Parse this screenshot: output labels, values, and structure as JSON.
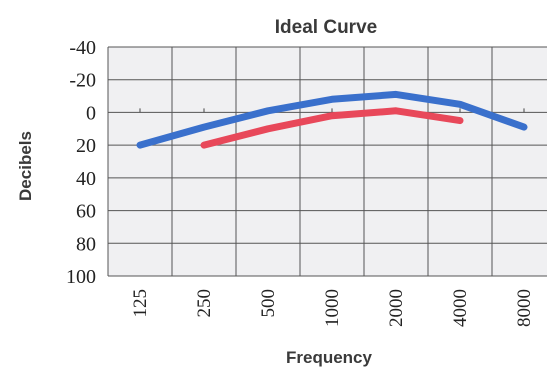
{
  "chart_data": {
    "type": "line",
    "title": "Ideal Curve",
    "xlabel": "Frequency",
    "ylabel": "Decibels",
    "categories": [
      "125",
      "250",
      "500",
      "1000",
      "2000",
      "4000",
      "8000"
    ],
    "y_ticks": [
      "-40",
      "-20",
      "0",
      "20",
      "40",
      "60",
      "80",
      "100"
    ],
    "ylim": [
      -40,
      100
    ],
    "y_inverted": true,
    "grid": true,
    "series": [
      {
        "color": "#3a70cc",
        "points": [
          {
            "x": "125",
            "y": 20
          },
          {
            "x": "250",
            "y": 9
          },
          {
            "x": "500",
            "y": -1
          },
          {
            "x": "1000",
            "y": -8
          },
          {
            "x": "2000",
            "y": -11
          },
          {
            "x": "4000",
            "y": -5
          },
          {
            "x": "8000",
            "y": 9
          }
        ]
      },
      {
        "color": "#e8485a",
        "points": [
          {
            "x": "250",
            "y": 20
          },
          {
            "x": "500",
            "y": 10
          },
          {
            "x": "1000",
            "y": 2
          },
          {
            "x": "2000",
            "y": -1
          },
          {
            "x": "4000",
            "y": 5
          }
        ]
      }
    ],
    "plot_background": "#f0f0f2"
  }
}
